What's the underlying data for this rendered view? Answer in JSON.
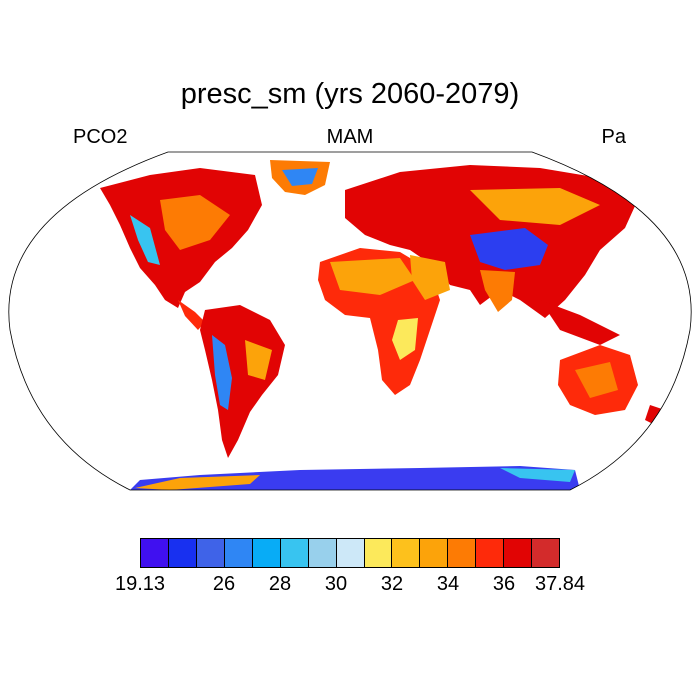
{
  "title": "presc_sm (yrs 2060-2079)",
  "subtitle": {
    "left": "PCO2",
    "center": "MAM",
    "right": "Pa"
  },
  "colorbar": {
    "colors": [
      "#4010f0",
      "#1830f0",
      "#3f63e8",
      "#2f86f4",
      "#08acf6",
      "#38c4f0",
      "#98d0ec",
      "#cde8f8",
      "#fce95b",
      "#fdc11c",
      "#fca30a",
      "#fd7b04",
      "#fe2a0a",
      "#e10404",
      "#d32b2b"
    ],
    "labels": [
      "19.13",
      "26",
      "28",
      "30",
      "32",
      "34",
      "36",
      "37.84"
    ]
  },
  "land_regions": [
    {
      "name": "north-america",
      "color": "#e10404"
    },
    {
      "name": "greenland",
      "color": "#fd7b04"
    },
    {
      "name": "south-america",
      "color": "#e10404"
    },
    {
      "name": "africa",
      "color": "#fe2a0a"
    },
    {
      "name": "eurasia",
      "color": "#e10404"
    },
    {
      "name": "tibetan-plateau",
      "color": "#2c3ef0"
    },
    {
      "name": "australia",
      "color": "#fe2a0a"
    },
    {
      "name": "antarctica",
      "color": "#3a3cf0"
    }
  ]
}
